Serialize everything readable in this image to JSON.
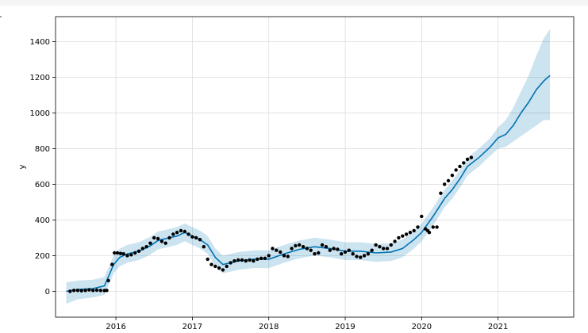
{
  "chart_data": {
    "type": "line",
    "title": "",
    "xlabel": "",
    "ylabel": "y",
    "xlim": [
      2015.21,
      2021.99
    ],
    "ylim": [
      -145,
      1540
    ],
    "grid": true,
    "x_ticks": [
      {
        "value": 2016.0,
        "label": "2016"
      },
      {
        "value": 2017.0,
        "label": "2017"
      },
      {
        "value": 2018.0,
        "label": "2018"
      },
      {
        "value": 2019.0,
        "label": "2019"
      },
      {
        "value": 2020.0,
        "label": "2020"
      },
      {
        "value": 2021.0,
        "label": "2021"
      }
    ],
    "y_ticks": [
      0,
      200,
      400,
      600,
      800,
      1000,
      1200,
      1400
    ],
    "colors": {
      "forecast": "#0072B2",
      "interval": "#0072B2",
      "observed": "#000000",
      "grid": "#dddddd"
    },
    "series": [
      {
        "type": "line",
        "x": [
          2015.35,
          2015.5,
          2015.7,
          2015.85,
          2015.92,
          2015.97,
          2016.05,
          2016.15,
          2016.3,
          2016.45,
          2016.55,
          2016.7,
          2016.8,
          2016.9,
          2017.0,
          2017.1,
          2017.2,
          2017.3,
          2017.4,
          2017.5,
          2017.6,
          2017.8,
          2018.0,
          2018.2,
          2018.4,
          2018.6,
          2018.8,
          2019.0,
          2019.2,
          2019.4,
          2019.6,
          2019.75,
          2019.9,
          2020.0,
          2020.15,
          2020.3,
          2020.4,
          2020.5,
          2020.6,
          2020.75,
          2020.9,
          2021.0,
          2021.1,
          2021.2,
          2021.3,
          2021.4,
          2021.5,
          2021.6,
          2021.68
        ],
        "yhat": [
          0,
          10,
          15,
          30,
          100,
          150,
          190,
          210,
          225,
          255,
          285,
          300,
          310,
          330,
          310,
          290,
          260,
          190,
          150,
          160,
          170,
          180,
          180,
          210,
          235,
          250,
          240,
          225,
          225,
          215,
          220,
          240,
          290,
          330,
          420,
          520,
          570,
          630,
          700,
          750,
          810,
          860,
          880,
          930,
          1000,
          1060,
          1130,
          1180,
          1210
        ]
      },
      {
        "type": "area",
        "x": [
          2015.35,
          2015.5,
          2015.7,
          2015.85,
          2015.92,
          2015.97,
          2016.05,
          2016.15,
          2016.3,
          2016.45,
          2016.55,
          2016.7,
          2016.8,
          2016.9,
          2017.0,
          2017.1,
          2017.2,
          2017.3,
          2017.4,
          2017.5,
          2017.6,
          2017.8,
          2018.0,
          2018.2,
          2018.4,
          2018.6,
          2018.8,
          2019.0,
          2019.2,
          2019.4,
          2019.6,
          2019.75,
          2019.9,
          2020.0,
          2020.15,
          2020.3,
          2020.4,
          2020.5,
          2020.6,
          2020.75,
          2020.9,
          2021.0,
          2021.1,
          2021.2,
          2021.3,
          2021.4,
          2021.5,
          2021.6,
          2021.68
        ],
        "lower": [
          -70,
          -45,
          -35,
          -20,
          50,
          100,
          140,
          160,
          175,
          205,
          235,
          250,
          260,
          280,
          260,
          240,
          210,
          140,
          100,
          110,
          120,
          130,
          130,
          160,
          185,
          200,
          190,
          175,
          175,
          165,
          170,
          190,
          240,
          280,
          370,
          470,
          520,
          580,
          650,
          700,
          760,
          800,
          810,
          840,
          870,
          900,
          930,
          960,
          960
        ],
        "upper": [
          50,
          60,
          65,
          80,
          150,
          200,
          240,
          260,
          275,
          305,
          335,
          350,
          360,
          380,
          360,
          340,
          310,
          240,
          200,
          210,
          220,
          230,
          230,
          260,
          285,
          300,
          290,
          275,
          275,
          265,
          270,
          290,
          340,
          380,
          470,
          570,
          620,
          680,
          750,
          800,
          860,
          920,
          960,
          1030,
          1120,
          1210,
          1320,
          1420,
          1470
        ]
      },
      {
        "type": "scatter",
        "x": [
          2015.4,
          2015.45,
          2015.5,
          2015.55,
          2015.6,
          2015.65,
          2015.7,
          2015.75,
          2015.8,
          2015.85,
          2015.88,
          2015.9,
          2015.95,
          2015.98,
          2016.02,
          2016.06,
          2016.1,
          2016.15,
          2016.2,
          2016.25,
          2016.3,
          2016.35,
          2016.4,
          2016.45,
          2016.5,
          2016.55,
          2016.6,
          2016.65,
          2016.7,
          2016.75,
          2016.8,
          2016.85,
          2016.9,
          2016.95,
          2017.0,
          2017.05,
          2017.1,
          2017.15,
          2017.2,
          2017.25,
          2017.3,
          2017.35,
          2017.4,
          2017.45,
          2017.5,
          2017.55,
          2017.6,
          2017.65,
          2017.7,
          2017.75,
          2017.8,
          2017.85,
          2017.9,
          2017.95,
          2018.0,
          2018.05,
          2018.1,
          2018.15,
          2018.2,
          2018.25,
          2018.3,
          2018.35,
          2018.4,
          2018.45,
          2018.5,
          2018.55,
          2018.6,
          2018.65,
          2018.7,
          2018.75,
          2018.8,
          2018.85,
          2018.9,
          2018.95,
          2019.0,
          2019.05,
          2019.1,
          2019.15,
          2019.2,
          2019.25,
          2019.3,
          2019.35,
          2019.4,
          2019.45,
          2019.5,
          2019.55,
          2019.6,
          2019.65,
          2019.7,
          2019.75,
          2019.8,
          2019.85,
          2019.9,
          2019.95,
          2020.0,
          2020.05,
          2020.08,
          2020.1,
          2020.15,
          2020.2,
          2020.25,
          2020.3,
          2020.35,
          2020.4,
          2020.45,
          2020.5,
          2020.55,
          2020.6,
          2020.65
        ],
        "y": [
          0,
          5,
          5,
          3,
          5,
          8,
          5,
          6,
          5,
          4,
          5,
          60,
          150,
          215,
          215,
          212,
          210,
          200,
          205,
          215,
          225,
          240,
          250,
          270,
          300,
          295,
          280,
          270,
          300,
          320,
          330,
          340,
          335,
          320,
          305,
          300,
          290,
          250,
          180,
          150,
          140,
          130,
          120,
          140,
          160,
          170,
          175,
          175,
          170,
          175,
          170,
          180,
          185,
          185,
          200,
          240,
          230,
          220,
          200,
          195,
          240,
          255,
          260,
          250,
          240,
          230,
          210,
          215,
          260,
          250,
          230,
          240,
          235,
          210,
          220,
          230,
          210,
          195,
          190,
          200,
          210,
          230,
          260,
          250,
          240,
          240,
          260,
          280,
          300,
          310,
          320,
          330,
          340,
          360,
          420,
          350,
          340,
          330,
          360,
          360,
          550,
          600,
          620,
          650,
          680,
          700,
          720,
          740,
          750
        ]
      }
    ]
  }
}
